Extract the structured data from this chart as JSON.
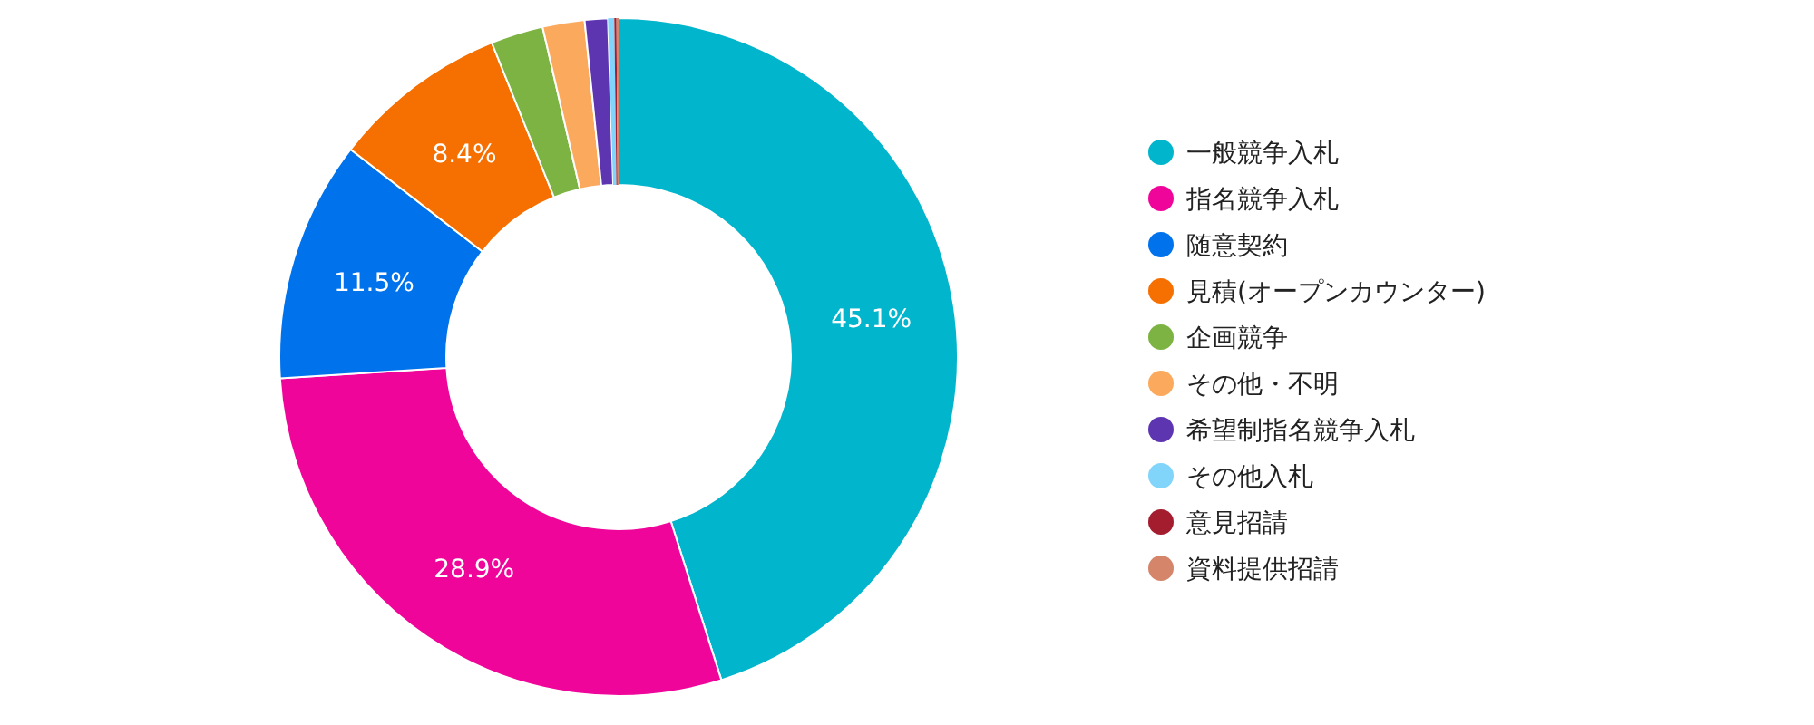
{
  "chart_data": {
    "type": "donut",
    "categories": [
      "一般競争入札",
      "指名競争入札",
      "随意契約",
      "見積(オープンカウンター)",
      "企画競争",
      "その他・不明",
      "希望制指名競争入札",
      "その他入札",
      "意見招請",
      "資料提供招請"
    ],
    "values": [
      45.1,
      28.9,
      11.5,
      8.4,
      2.5,
      2.0,
      1.1,
      0.3,
      0.1,
      0.1
    ],
    "colors": [
      "#00b5cc",
      "#f0059a",
      "#0073ec",
      "#f57000",
      "#7cb342",
      "#fbaa5d",
      "#5e35b1",
      "#81d4fa",
      "#a31d2e",
      "#d4856a"
    ],
    "value_labels": [
      "45.1%",
      "28.9%",
      "11.5%",
      "8.4%",
      null,
      null,
      null,
      null,
      null,
      null
    ],
    "legend": "right"
  }
}
